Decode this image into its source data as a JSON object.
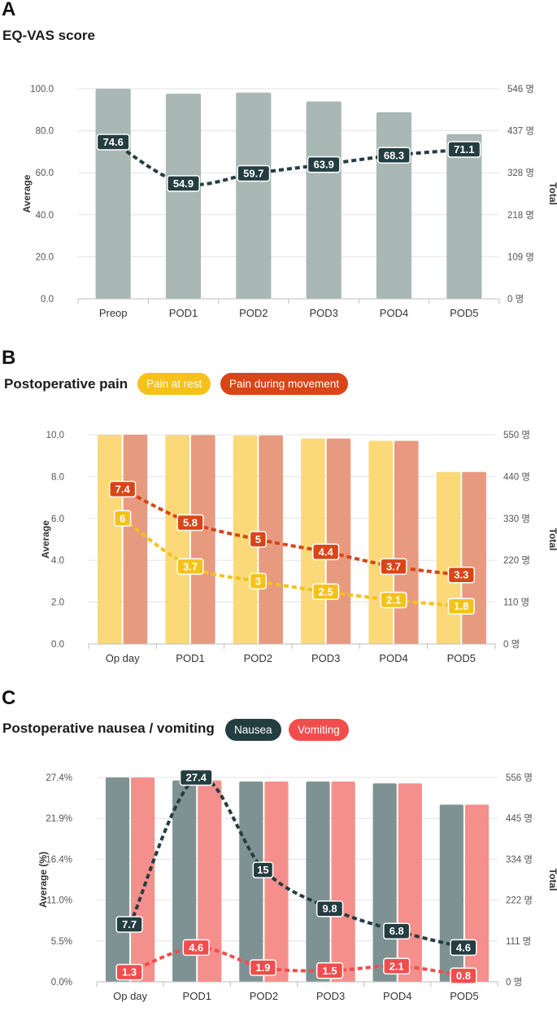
{
  "charts": {
    "a": {
      "letter": "A",
      "chart_data": {
        "type": "bar",
        "title": "EQ-VAS score",
        "categories": [
          "Preop",
          "POD1",
          "POD2",
          "POD3",
          "POD4",
          "POD5"
        ],
        "ylabel": "Average",
        "y2label": "Total",
        "ylim": [
          0,
          100
        ],
        "y_ticks": [
          "0.0",
          "20.0",
          "40.0",
          "60.0",
          "80.0",
          "100.0"
        ],
        "y2_ticks": [
          "0 명",
          "109 명",
          "218 명",
          "328 명",
          "437 명",
          "546 명"
        ],
        "total_max": 546,
        "totals": [
          546,
          533,
          536,
          513,
          485,
          428
        ],
        "bar_colors": [
          "#a9b7b5"
        ],
        "series": [
          {
            "name": "EQ-VAS",
            "values": [
              74.6,
              54.9,
              59.7,
              63.9,
              68.3,
              71.1
            ],
            "labels": [
              "74.6",
              "54.9",
              "59.7",
              "63.9",
              "68.3",
              "71.1"
            ],
            "color": "#243d40",
            "label_bg": "#243d40",
            "label_fg": "#ffffff"
          }
        ]
      }
    },
    "b": {
      "letter": "B",
      "legend": [
        {
          "label": "Pain at rest",
          "color": "#f5c21b"
        },
        {
          "label": "Pain during movement",
          "color": "#d84517"
        }
      ],
      "chart_data": {
        "type": "bar",
        "title": "Postoperative pain",
        "categories": [
          "Op day",
          "POD1",
          "POD2",
          "POD3",
          "POD4",
          "POD5"
        ],
        "ylabel": "Average",
        "y2label": "Total",
        "ylim": [
          0,
          10
        ],
        "y_ticks": [
          "0.0",
          "2.0",
          "4.0",
          "6.0",
          "8.0",
          "10.0"
        ],
        "y2_ticks": [
          "0 명",
          "110 명",
          "220 명",
          "330 명",
          "440 명",
          "550 명"
        ],
        "total_max": 550,
        "totals": [
          550,
          549,
          548,
          540,
          534,
          452
        ],
        "bar_colors": [
          "#fbd978",
          "#e79a7f"
        ],
        "series": [
          {
            "name": "Pain at rest",
            "values": [
              6,
              3.7,
              3,
              2.5,
              2.1,
              1.8
            ],
            "labels": [
              "6",
              "3.7",
              "3",
              "2.5",
              "2.1",
              "1.8"
            ],
            "color": "#f5c21b",
            "label_bg": "#f5c21b",
            "label_fg": "#ffffff"
          },
          {
            "name": "Pain during movement",
            "values": [
              7.4,
              5.8,
              5,
              4.4,
              3.7,
              3.3
            ],
            "labels": [
              "7.4",
              "5.8",
              "5",
              "4.4",
              "3.7",
              "3.3"
            ],
            "color": "#d84517",
            "label_bg": "#d84517",
            "label_fg": "#ffffff"
          }
        ]
      }
    },
    "c": {
      "letter": "C",
      "legend": [
        {
          "label": "Nausea",
          "color": "#243d40"
        },
        {
          "label": "Vomiting",
          "color": "#f14d4d"
        }
      ],
      "chart_data": {
        "type": "bar",
        "title": "Postoperative nausea / vomiting",
        "categories": [
          "Op day",
          "POD1",
          "POD2",
          "POD3",
          "POD4",
          "POD5"
        ],
        "ylabel": "Average (%)",
        "y2label": "Total",
        "ylim": [
          0,
          27.4
        ],
        "y_ticks": [
          "0.0%",
          "5.5%",
          "11.0%",
          "16.4%",
          "21.9%",
          "27.4%"
        ],
        "y2_ticks": [
          "0 명",
          "111 명",
          "222 명",
          "334 명",
          "445 명",
          "556 명"
        ],
        "total_max": 556,
        "totals": [
          556,
          548,
          545,
          545,
          540,
          482
        ],
        "bar_colors": [
          "#7e9293",
          "#f58f8c"
        ],
        "series": [
          {
            "name": "Nausea",
            "values": [
              7.7,
              27.4,
              15,
              9.8,
              6.8,
              4.6
            ],
            "labels": [
              "7.7",
              "27.4",
              "15",
              "9.8",
              "6.8",
              "4.6"
            ],
            "color": "#243d40",
            "label_bg": "#243d40",
            "label_fg": "#ffffff"
          },
          {
            "name": "Vomiting",
            "values": [
              1.3,
              4.6,
              1.9,
              1.5,
              2.1,
              0.8
            ],
            "labels": [
              "1.3",
              "4.6",
              "1.9",
              "1.5",
              "2.1",
              "0.8"
            ],
            "color": "#f14d4d",
            "label_bg": "#f14d4d",
            "label_fg": "#ffffff"
          }
        ]
      }
    }
  }
}
